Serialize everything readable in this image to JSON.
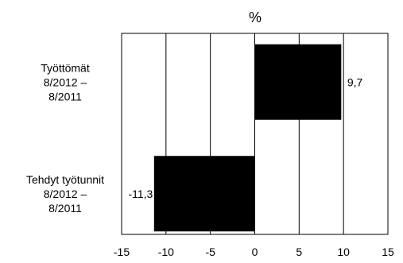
{
  "chart_data": {
    "type": "bar",
    "orientation": "horizontal",
    "title": "%",
    "categories": [
      [
        "Työttömät",
        "8/2012 –",
        "8/2011"
      ],
      [
        "Tehdyt työtunnit",
        "8/2012 –",
        "8/2011"
      ]
    ],
    "values": [
      9.7,
      -11.3
    ],
    "value_labels": [
      "9,7",
      "-11,3"
    ],
    "xlim": [
      -15,
      15
    ],
    "xticks": [
      -15,
      -10,
      -5,
      0,
      5,
      10,
      15
    ],
    "xtick_labels": [
      "-15",
      "-10",
      "-5",
      "0",
      "5",
      "10",
      "15"
    ],
    "grid": "vertical",
    "legend": "none",
    "bar_color": "#000000",
    "grid_color": "#000000"
  }
}
